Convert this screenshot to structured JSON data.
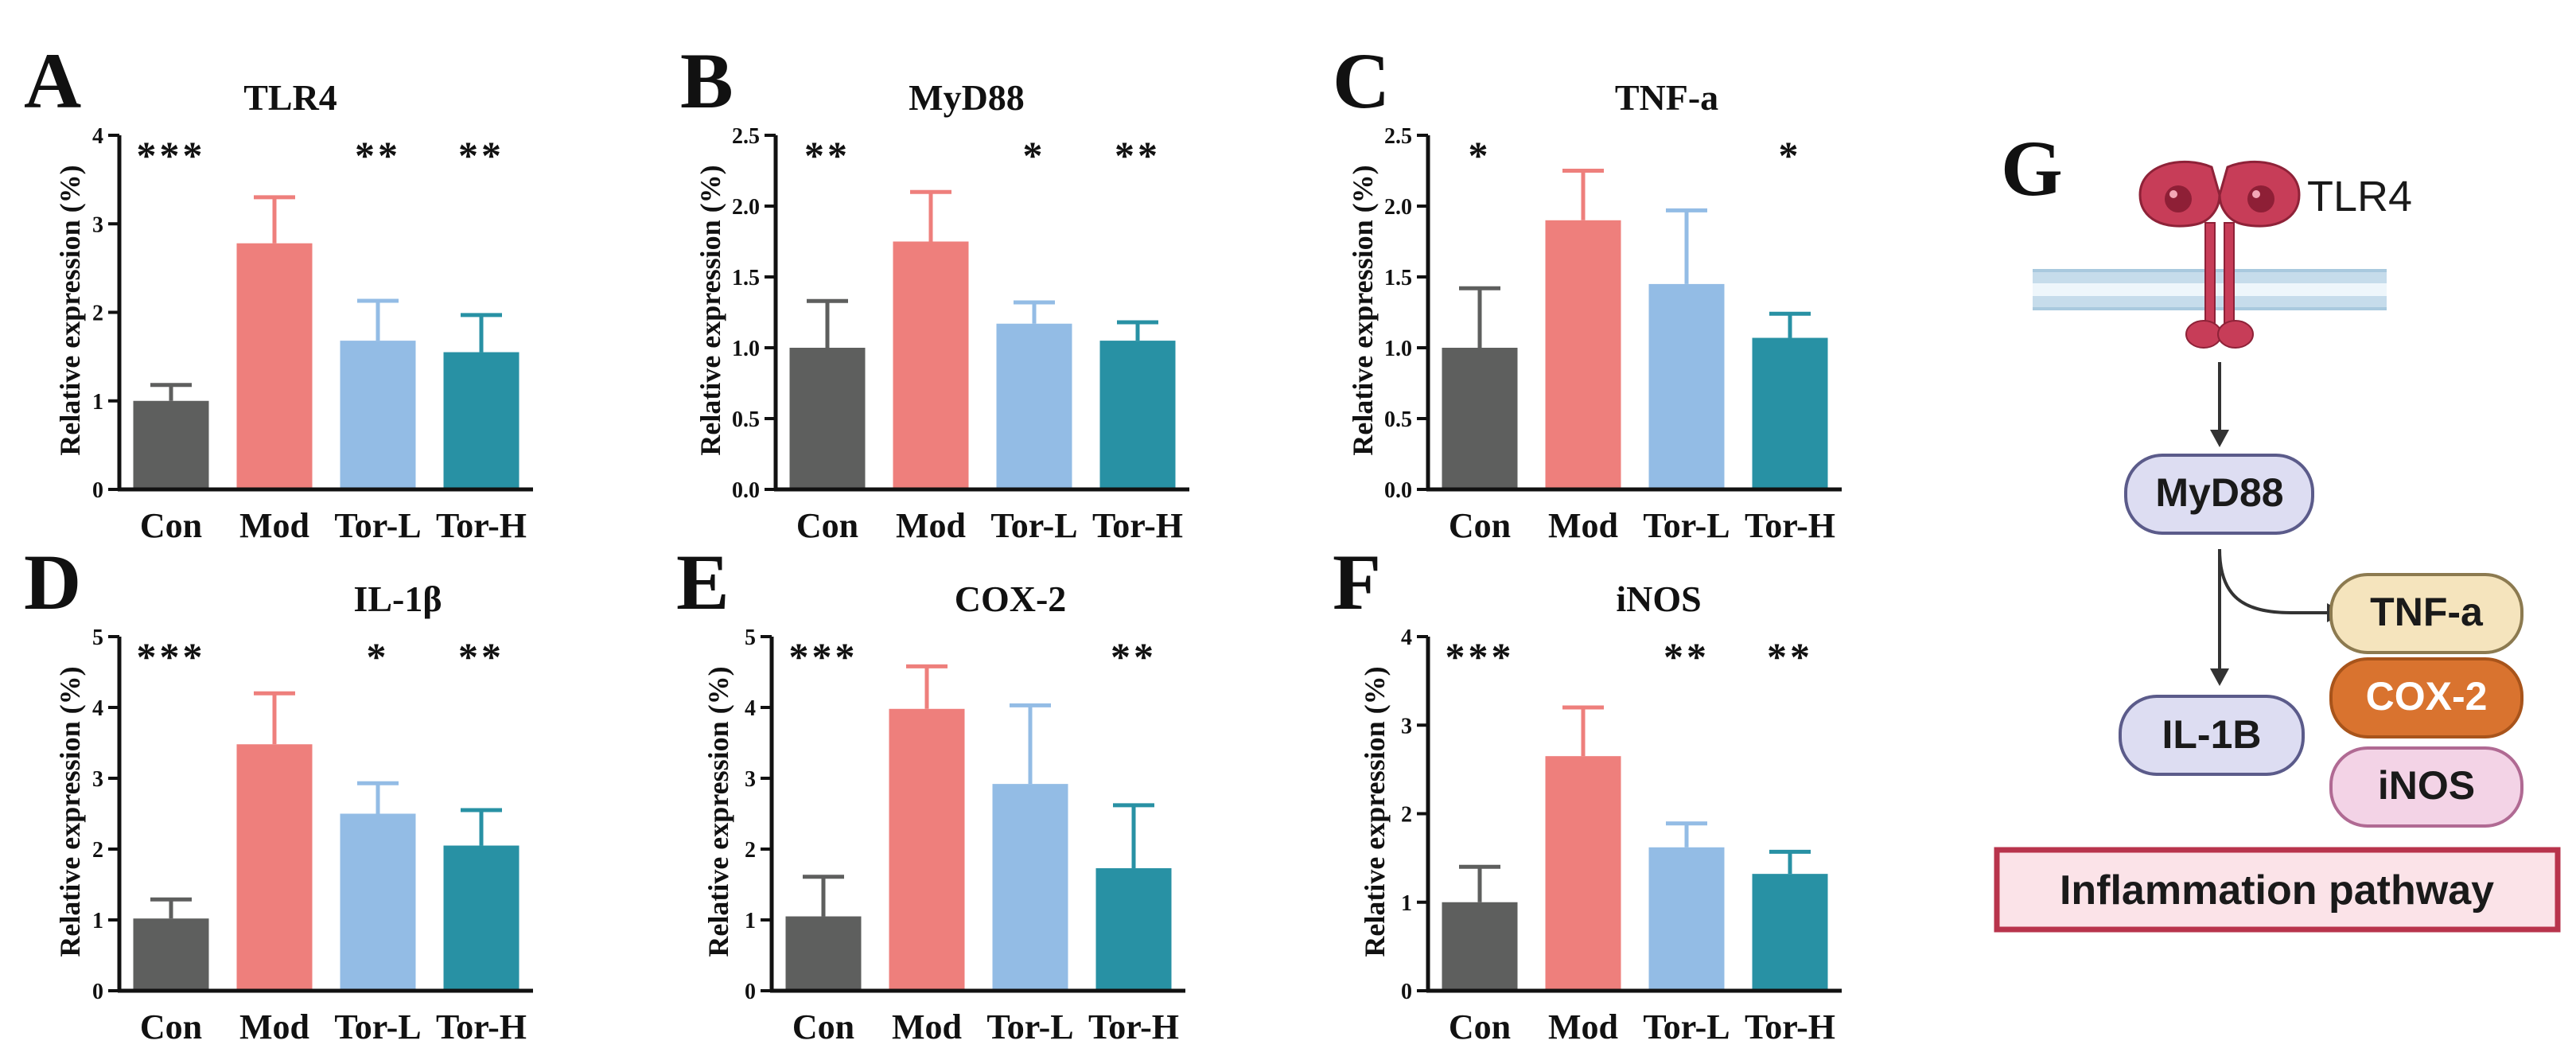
{
  "colors": {
    "Con": "#5e5f5e",
    "Mod": "#ee7f7c",
    "Tor-L": "#93bce5",
    "Tor-H": "#2891a4",
    "axis": "#111111",
    "membrane": "#a9c9de",
    "receptor": "#c73d58",
    "myd88_fill": "#ddddf2",
    "tnf_fill": "#f5e4bd",
    "cox_fill": "#d9732f",
    "inos_fill": "#f3d3e6",
    "pathway_fill": "#fbe3e8",
    "pathway_border": "#b8344c"
  },
  "chart_data": [
    {
      "type": "bar",
      "panel": "A",
      "title": "TLR4",
      "ylabel": "Relative expression (%)",
      "xlabel": "",
      "categories": [
        "Con",
        "Mod",
        "Tor-L",
        "Tor-H"
      ],
      "values": [
        1.0,
        2.78,
        1.68,
        1.55
      ],
      "errors": [
        0.18,
        0.52,
        0.45,
        0.42
      ],
      "significance": [
        "***",
        "",
        "**",
        "**"
      ],
      "ylim": [
        0,
        4
      ],
      "yticks": [
        "0",
        "1",
        "2",
        "3",
        "4"
      ],
      "grid": false
    },
    {
      "type": "bar",
      "panel": "B",
      "title": "MyD88",
      "ylabel": "Relative expression (%)",
      "xlabel": "",
      "categories": [
        "Con",
        "Mod",
        "Tor-L",
        "Tor-H"
      ],
      "values": [
        1.0,
        1.75,
        1.17,
        1.05
      ],
      "errors": [
        0.33,
        0.35,
        0.15,
        0.13
      ],
      "significance": [
        "**",
        "",
        "*",
        "**"
      ],
      "ylim": [
        0,
        2.5
      ],
      "yticks": [
        "0.0",
        "0.5",
        "1.0",
        "1.5",
        "2.0",
        "2.5"
      ],
      "grid": false
    },
    {
      "type": "bar",
      "panel": "C",
      "title": "TNF-a",
      "ylabel": "Relative expression (%)",
      "xlabel": "",
      "categories": [
        "Con",
        "Mod",
        "Tor-L",
        "Tor-H"
      ],
      "values": [
        1.0,
        1.9,
        1.45,
        1.07
      ],
      "errors": [
        0.42,
        0.35,
        0.52,
        0.17
      ],
      "significance": [
        "*",
        "",
        "",
        "*"
      ],
      "ylim": [
        0,
        2.5
      ],
      "yticks": [
        "0.0",
        "0.5",
        "1.0",
        "1.5",
        "2.0",
        "2.5"
      ],
      "grid": false
    },
    {
      "type": "bar",
      "panel": "D",
      "title": "IL-1β",
      "ylabel": "Relative expression (%)",
      "xlabel": "",
      "categories": [
        "Con",
        "Mod",
        "Tor-L",
        "Tor-H"
      ],
      "values": [
        1.02,
        3.48,
        2.5,
        2.05
      ],
      "errors": [
        0.27,
        0.72,
        0.43,
        0.5
      ],
      "significance": [
        "***",
        "",
        "*",
        "**"
      ],
      "ylim": [
        0,
        5
      ],
      "yticks": [
        "0",
        "1",
        "2",
        "3",
        "4",
        "5"
      ],
      "grid": false
    },
    {
      "type": "bar",
      "panel": "E",
      "title": "COX-2",
      "ylabel": "Relative expression (%)",
      "xlabel": "",
      "categories": [
        "Con",
        "Mod",
        "Tor-L",
        "Tor-H"
      ],
      "values": [
        1.05,
        3.98,
        2.92,
        1.73
      ],
      "errors": [
        0.56,
        0.6,
        1.11,
        0.89
      ],
      "significance": [
        "***",
        "",
        "",
        "**"
      ],
      "ylim": [
        0,
        5
      ],
      "yticks": [
        "0",
        "1",
        "2",
        "3",
        "4",
        "5"
      ],
      "grid": false
    },
    {
      "type": "bar",
      "panel": "F",
      "title": "iNOS",
      "ylabel": "Relative expression (%)",
      "xlabel": "",
      "categories": [
        "Con",
        "Mod",
        "Tor-L",
        "Tor-H"
      ],
      "values": [
        1.0,
        2.65,
        1.62,
        1.32
      ],
      "errors": [
        0.4,
        0.55,
        0.27,
        0.25
      ],
      "significance": [
        "***",
        "",
        "**",
        "**"
      ],
      "ylim": [
        0,
        4
      ],
      "yticks": [
        "0",
        "1",
        "2",
        "3",
        "4"
      ],
      "grid": false
    }
  ],
  "diagram": {
    "panel": "G",
    "receptor_label": "TLR4",
    "adapter_label": "MyD88",
    "mediators": [
      "TNF-a",
      "COX-2",
      "iNOS"
    ],
    "cytokine_label": "IL-1B",
    "pathway_label": "Inflammation pathway"
  }
}
